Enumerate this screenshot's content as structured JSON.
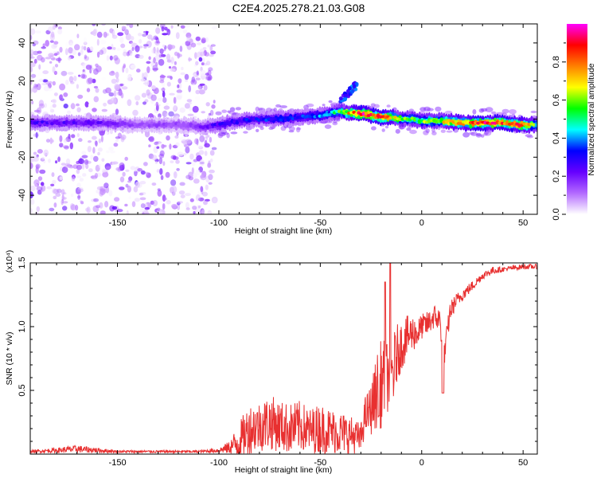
{
  "title": "C2E4.2025.278.21.03.G08",
  "chart_data": [
    {
      "type": "heatmap",
      "name": "spectrogram",
      "xlabel": "Height of straight line (km)",
      "ylabel": "Frequency (Hz)",
      "xlim": [
        -193,
        57
      ],
      "ylim": [
        -50,
        50
      ],
      "xticks": [
        -150,
        -100,
        -50,
        0,
        50
      ],
      "xtick_labels": [
        "-150",
        "-100",
        "-50",
        "0",
        "50"
      ],
      "yticks": [
        -40,
        -20,
        0,
        20,
        40
      ],
      "ytick_labels": [
        "-40",
        "-20",
        "0",
        "20",
        "40"
      ],
      "colorbar": {
        "label": "Normalized spectral amplitude",
        "range": [
          0,
          1
        ],
        "ticks": [
          0.0,
          0.2,
          0.4,
          0.6,
          0.8
        ],
        "tick_labels": [
          "0.0",
          "0.2",
          "0.4",
          "0.6",
          "0.8"
        ],
        "colors": [
          "#ffffff",
          "#b36aff",
          "#6600ff",
          "#0000ff",
          "#00ffff",
          "#00ff00",
          "#ffff00",
          "#ff8000",
          "#ff0000",
          "#ff00ff"
        ]
      },
      "noise_region": {
        "x": [
          -193,
          -102
        ],
        "freq_spread": [
          -50,
          50
        ],
        "intensity": 0.2
      },
      "ridge": {
        "x": [
          -193,
          -160,
          -140,
          -120,
          -108,
          -100,
          -90,
          -80,
          -70,
          -60,
          -50,
          -45,
          -40,
          -35,
          -30,
          -25,
          -20,
          -15,
          -10,
          -5,
          0,
          10,
          20,
          30,
          40,
          50,
          57
        ],
        "freq": [
          -2,
          -2,
          -3,
          -3,
          -4,
          -3,
          -1,
          0,
          0,
          1,
          2,
          3,
          4,
          3,
          3,
          2,
          1,
          1,
          0,
          0,
          -1,
          -1,
          -2,
          -2,
          -2,
          -3,
          -3
        ],
        "amplitude": [
          0.25,
          0.22,
          0.15,
          0.15,
          0.2,
          0.28,
          0.3,
          0.32,
          0.35,
          0.35,
          0.4,
          0.45,
          0.55,
          0.75,
          0.9,
          0.85,
          0.9,
          0.7,
          0.6,
          0.55,
          0.6,
          0.65,
          0.8,
          0.85,
          0.85,
          0.85,
          0.5
        ]
      },
      "branch": {
        "x": [
          -40,
          -38,
          -35,
          -33,
          -32
        ],
        "freq": [
          10,
          12,
          15,
          17,
          18
        ],
        "amplitude": 0.35
      }
    },
    {
      "type": "line",
      "name": "snr",
      "xlabel": "Height of straight line (km)",
      "ylabel": "SNR (10 * v/v)",
      "exponent_label": "(x10⁴)",
      "xlim": [
        -193,
        57
      ],
      "ylim": [
        0,
        1.5
      ],
      "xticks": [
        -150,
        -100,
        -50,
        0,
        50
      ],
      "xtick_labels": [
        "-150",
        "-100",
        "-50",
        "0",
        "50"
      ],
      "yticks": [
        0.5,
        1.0,
        1.5
      ],
      "ytick_labels": [
        "0.5",
        "1.0",
        "1.5"
      ],
      "color": "#e83030",
      "series": [
        {
          "name": "SNR",
          "x": [
            -193,
            -180,
            -170,
            -160,
            -150,
            -140,
            -130,
            -120,
            -110,
            -100,
            -95,
            -90,
            -85,
            -80,
            -75,
            -70,
            -65,
            -60,
            -55,
            -50,
            -45,
            -40,
            -35,
            -30,
            -28,
            -25,
            -22,
            -20,
            -18,
            -16,
            -14,
            -12,
            -10,
            -8,
            -5,
            -2,
            0,
            3,
            6,
            9,
            11,
            14,
            17,
            20,
            25,
            30,
            35,
            40,
            45,
            50,
            57
          ],
          "y": [
            0.02,
            0.03,
            0.04,
            0.03,
            0.02,
            0.02,
            0.02,
            0.02,
            0.02,
            0.03,
            0.05,
            0.1,
            0.2,
            0.22,
            0.25,
            0.22,
            0.2,
            0.22,
            0.18,
            0.2,
            0.18,
            0.17,
            0.15,
            0.12,
            0.3,
            0.35,
            0.5,
            0.55,
            0.6,
            0.62,
            0.65,
            0.8,
            0.85,
            0.9,
            0.95,
            0.95,
            1.0,
            1.02,
            1.08,
            1.05,
            0.75,
            1.12,
            1.2,
            1.25,
            1.32,
            1.4,
            1.44,
            1.45,
            1.46,
            1.47,
            1.47
          ],
          "noise_amplitude": [
            0.01,
            0.02,
            0.03,
            0.02,
            0.01,
            0.01,
            0.01,
            0.01,
            0.01,
            0.02,
            0.05,
            0.15,
            0.2,
            0.2,
            0.22,
            0.2,
            0.2,
            0.2,
            0.18,
            0.2,
            0.18,
            0.17,
            0.15,
            0.12,
            0.15,
            0.2,
            0.3,
            0.35,
            0.3,
            0.28,
            0.3,
            0.22,
            0.2,
            0.18,
            0.15,
            0.12,
            0.1,
            0.1,
            0.1,
            0.1,
            0.1,
            0.08,
            0.06,
            0.05,
            0.04,
            0.03,
            0.03,
            0.02,
            0.02,
            0.02,
            0.02
          ]
        }
      ]
    }
  ]
}
